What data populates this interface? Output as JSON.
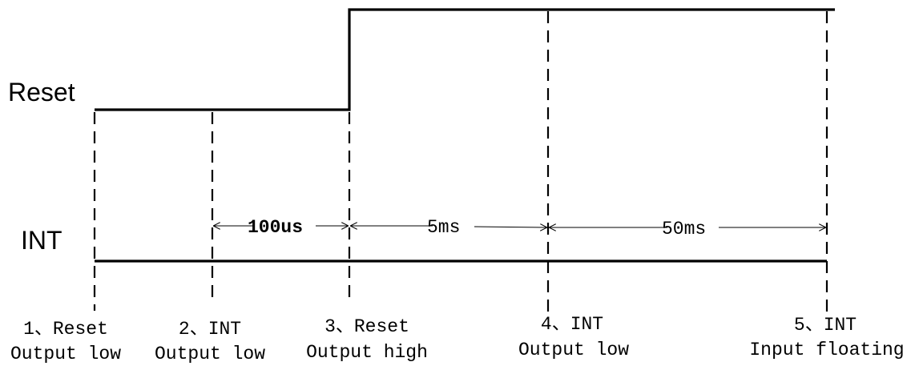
{
  "signals": {
    "reset": {
      "label": "Reset"
    },
    "int": {
      "label": "INT"
    }
  },
  "intervals": [
    {
      "label": "100us"
    },
    {
      "label": "5ms"
    },
    {
      "label": "50ms"
    }
  ],
  "steps": [
    {
      "title": "1、Reset",
      "sub": "Output low"
    },
    {
      "title": "2、INT",
      "sub": "Output low"
    },
    {
      "title": "3、Reset",
      "sub": "Output high"
    },
    {
      "title": "4、INT",
      "sub": "Output low"
    },
    {
      "title": "5、INT",
      "sub": "Input floating"
    }
  ]
}
